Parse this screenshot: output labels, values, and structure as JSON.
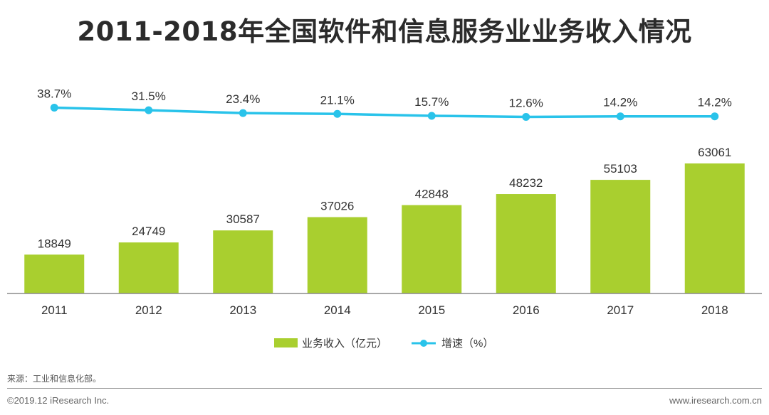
{
  "chart_data": {
    "type": "bar+line",
    "title": "2011-2018年全国软件和信息服务业业务收入情况",
    "categories": [
      "2011",
      "2012",
      "2013",
      "2014",
      "2015",
      "2016",
      "2017",
      "2018"
    ],
    "series": [
      {
        "name": "业务收入（亿元）",
        "type": "bar",
        "color": "#a9cf2f",
        "values": [
          18849,
          24749,
          30587,
          37026,
          42848,
          48232,
          55103,
          63061
        ]
      },
      {
        "name": "增速（%）",
        "type": "line",
        "color": "#29c3ea",
        "values": [
          38.7,
          31.5,
          23.4,
          21.1,
          15.7,
          12.6,
          14.2,
          14.2
        ],
        "labels": [
          "38.7%",
          "31.5%",
          "23.4%",
          "21.1%",
          "15.7%",
          "12.6%",
          "14.2%",
          "14.2%"
        ]
      }
    ],
    "bar_ylim": [
      0,
      63061
    ],
    "legend_position": "bottom-center",
    "grid": false
  },
  "footer": {
    "source": "来源：工业和信息化部。",
    "copyright": "©2019.12 iResearch Inc.",
    "website": "www.iresearch.com.cn"
  }
}
